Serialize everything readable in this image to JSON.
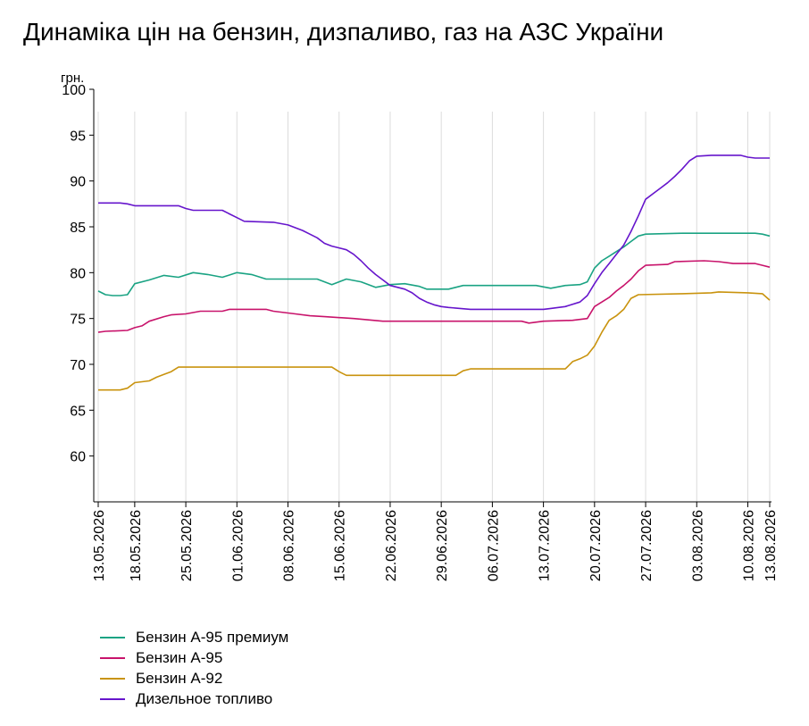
{
  "chart_data": {
    "type": "line",
    "title": "Динаміка цін на бензин, дизпаливо, газ на АЗС України",
    "ylabel": "грн.",
    "ylim": [
      55,
      100
    ],
    "yticks": [
      100,
      95,
      90,
      85,
      80,
      75,
      70,
      65,
      60
    ],
    "x_start": "13.05.2026",
    "x_end": "13.08.2026",
    "xticks": [
      "13.05.2026",
      "18.05.2026",
      "25.05.2026",
      "01.06.2026",
      "08.06.2026",
      "15.06.2026",
      "22.06.2026",
      "29.06.2026",
      "06.07.2026",
      "13.07.2026",
      "20.07.2026",
      "27.07.2026",
      "03.08.2026",
      "10.08.2026",
      "13.08.2026"
    ],
    "series": [
      {
        "name": "Бензин А-95 премиум",
        "color": "#1aa383",
        "points": [
          [
            "13.05.2026",
            78.0
          ],
          [
            "14.05.2026",
            77.6
          ],
          [
            "15.05.2026",
            77.5
          ],
          [
            "16.05.2026",
            77.5
          ],
          [
            "17.05.2026",
            77.6
          ],
          [
            "18.05.2026",
            78.8
          ],
          [
            "20.05.2026",
            79.2
          ],
          [
            "22.05.2026",
            79.7
          ],
          [
            "24.05.2026",
            79.5
          ],
          [
            "26.05.2026",
            80.0
          ],
          [
            "28.05.2026",
            79.8
          ],
          [
            "30.05.2026",
            79.5
          ],
          [
            "01.06.2026",
            80.0
          ],
          [
            "03.06.2026",
            79.8
          ],
          [
            "05.06.2026",
            79.3
          ],
          [
            "12.06.2026",
            79.3
          ],
          [
            "14.06.2026",
            78.7
          ],
          [
            "16.06.2026",
            79.3
          ],
          [
            "18.06.2026",
            79.0
          ],
          [
            "20.06.2026",
            78.4
          ],
          [
            "22.06.2026",
            78.7
          ],
          [
            "24.06.2026",
            78.8
          ],
          [
            "26.06.2026",
            78.5
          ],
          [
            "27.06.2026",
            78.2
          ],
          [
            "30.06.2026",
            78.2
          ],
          [
            "02.07.2026",
            78.6
          ],
          [
            "12.07.2026",
            78.6
          ],
          [
            "14.07.2026",
            78.3
          ],
          [
            "16.07.2026",
            78.6
          ],
          [
            "18.07.2026",
            78.7
          ],
          [
            "19.07.2026",
            79.0
          ],
          [
            "20.07.2026",
            80.5
          ],
          [
            "21.07.2026",
            81.3
          ],
          [
            "22.07.2026",
            81.8
          ],
          [
            "23.07.2026",
            82.3
          ],
          [
            "24.07.2026",
            82.8
          ],
          [
            "25.07.2026",
            83.4
          ],
          [
            "26.07.2026",
            84.0
          ],
          [
            "27.07.2026",
            84.2
          ],
          [
            "01.08.2026",
            84.3
          ],
          [
            "11.08.2026",
            84.3
          ],
          [
            "12.08.2026",
            84.2
          ],
          [
            "13.08.2026",
            84.0
          ]
        ]
      },
      {
        "name": "Бензин А-95",
        "color": "#c8136b",
        "points": [
          [
            "13.05.2026",
            73.5
          ],
          [
            "14.05.2026",
            73.6
          ],
          [
            "17.05.2026",
            73.7
          ],
          [
            "18.05.2026",
            74.0
          ],
          [
            "19.05.2026",
            74.2
          ],
          [
            "20.05.2026",
            74.7
          ],
          [
            "22.05.2026",
            75.2
          ],
          [
            "23.05.2026",
            75.4
          ],
          [
            "25.05.2026",
            75.5
          ],
          [
            "27.05.2026",
            75.8
          ],
          [
            "30.05.2026",
            75.8
          ],
          [
            "31.05.2026",
            76.0
          ],
          [
            "05.06.2026",
            76.0
          ],
          [
            "06.06.2026",
            75.8
          ],
          [
            "09.06.2026",
            75.5
          ],
          [
            "11.06.2026",
            75.3
          ],
          [
            "13.06.2026",
            75.2
          ],
          [
            "17.06.2026",
            75.0
          ],
          [
            "21.06.2026",
            74.7
          ],
          [
            "10.07.2026",
            74.7
          ],
          [
            "11.07.2026",
            74.5
          ],
          [
            "13.07.2026",
            74.7
          ],
          [
            "17.07.2026",
            74.8
          ],
          [
            "19.07.2026",
            75.0
          ],
          [
            "20.07.2026",
            76.3
          ],
          [
            "22.07.2026",
            77.3
          ],
          [
            "23.07.2026",
            78.0
          ],
          [
            "24.07.2026",
            78.6
          ],
          [
            "25.07.2026",
            79.3
          ],
          [
            "26.07.2026",
            80.2
          ],
          [
            "27.07.2026",
            80.8
          ],
          [
            "30.07.2026",
            80.9
          ],
          [
            "31.07.2026",
            81.2
          ],
          [
            "04.08.2026",
            81.3
          ],
          [
            "06.08.2026",
            81.2
          ],
          [
            "08.08.2026",
            81.0
          ],
          [
            "11.08.2026",
            81.0
          ],
          [
            "12.08.2026",
            80.8
          ],
          [
            "13.08.2026",
            80.6
          ]
        ]
      },
      {
        "name": "Бензин А-92",
        "color": "#c9930e",
        "points": [
          [
            "13.05.2026",
            67.2
          ],
          [
            "16.05.2026",
            67.2
          ],
          [
            "17.05.2026",
            67.4
          ],
          [
            "18.05.2026",
            68.0
          ],
          [
            "20.05.2026",
            68.2
          ],
          [
            "21.05.2026",
            68.6
          ],
          [
            "22.05.2026",
            68.9
          ],
          [
            "23.05.2026",
            69.2
          ],
          [
            "24.05.2026",
            69.7
          ],
          [
            "14.06.2026",
            69.7
          ],
          [
            "15.06.2026",
            69.2
          ],
          [
            "16.06.2026",
            68.8
          ],
          [
            "01.07.2026",
            68.8
          ],
          [
            "02.07.2026",
            69.3
          ],
          [
            "03.07.2026",
            69.5
          ],
          [
            "16.07.2026",
            69.5
          ],
          [
            "17.07.2026",
            70.3
          ],
          [
            "18.07.2026",
            70.6
          ],
          [
            "19.07.2026",
            71.0
          ],
          [
            "20.07.2026",
            72.0
          ],
          [
            "21.07.2026",
            73.5
          ],
          [
            "22.07.2026",
            74.8
          ],
          [
            "23.07.2026",
            75.3
          ],
          [
            "24.07.2026",
            76.0
          ],
          [
            "25.07.2026",
            77.2
          ],
          [
            "26.07.2026",
            77.6
          ],
          [
            "01.08.2026",
            77.7
          ],
          [
            "05.08.2026",
            77.8
          ],
          [
            "06.08.2026",
            77.9
          ],
          [
            "10.08.2026",
            77.8
          ],
          [
            "12.08.2026",
            77.7
          ],
          [
            "13.08.2026",
            77.0
          ]
        ]
      },
      {
        "name": "Дизельное топливо",
        "color": "#6615cc",
        "points": [
          [
            "13.05.2026",
            87.6
          ],
          [
            "16.05.2026",
            87.6
          ],
          [
            "17.05.2026",
            87.5
          ],
          [
            "18.05.2026",
            87.3
          ],
          [
            "24.05.2026",
            87.3
          ],
          [
            "25.05.2026",
            87.0
          ],
          [
            "26.05.2026",
            86.8
          ],
          [
            "30.05.2026",
            86.8
          ],
          [
            "31.05.2026",
            86.4
          ],
          [
            "01.06.2026",
            86.0
          ],
          [
            "02.06.2026",
            85.6
          ],
          [
            "06.06.2026",
            85.5
          ],
          [
            "08.06.2026",
            85.2
          ],
          [
            "10.06.2026",
            84.6
          ],
          [
            "11.06.2026",
            84.2
          ],
          [
            "12.06.2026",
            83.8
          ],
          [
            "13.06.2026",
            83.2
          ],
          [
            "14.06.2026",
            82.9
          ],
          [
            "16.06.2026",
            82.5
          ],
          [
            "17.06.2026",
            82.0
          ],
          [
            "18.06.2026",
            81.3
          ],
          [
            "19.06.2026",
            80.5
          ],
          [
            "20.06.2026",
            79.8
          ],
          [
            "21.06.2026",
            79.2
          ],
          [
            "22.06.2026",
            78.6
          ],
          [
            "24.06.2026",
            78.2
          ],
          [
            "25.06.2026",
            77.8
          ],
          [
            "26.06.2026",
            77.2
          ],
          [
            "27.06.2026",
            76.8
          ],
          [
            "28.06.2026",
            76.5
          ],
          [
            "29.06.2026",
            76.3
          ],
          [
            "30.06.2026",
            76.2
          ],
          [
            "03.07.2026",
            76.0
          ],
          [
            "13.07.2026",
            76.0
          ],
          [
            "14.07.2026",
            76.1
          ],
          [
            "16.07.2026",
            76.3
          ],
          [
            "18.07.2026",
            76.8
          ],
          [
            "19.07.2026",
            77.5
          ],
          [
            "20.07.2026",
            78.8
          ],
          [
            "21.07.2026",
            80.0
          ],
          [
            "22.07.2026",
            81.0
          ],
          [
            "23.07.2026",
            82.0
          ],
          [
            "24.07.2026",
            83.0
          ],
          [
            "25.07.2026",
            84.5
          ],
          [
            "26.07.2026",
            86.2
          ],
          [
            "27.07.2026",
            88.0
          ],
          [
            "28.07.2026",
            88.6
          ],
          [
            "29.07.2026",
            89.2
          ],
          [
            "30.07.2026",
            89.8
          ],
          [
            "31.07.2026",
            90.5
          ],
          [
            "01.08.2026",
            91.3
          ],
          [
            "02.08.2026",
            92.2
          ],
          [
            "03.08.2026",
            92.7
          ],
          [
            "05.08.2026",
            92.8
          ],
          [
            "09.08.2026",
            92.8
          ],
          [
            "10.08.2026",
            92.6
          ],
          [
            "11.08.2026",
            92.5
          ],
          [
            "13.08.2026",
            92.5
          ]
        ]
      }
    ],
    "legend_position": "bottom-left",
    "grid": {
      "vertical": true,
      "horizontal": false
    }
  }
}
